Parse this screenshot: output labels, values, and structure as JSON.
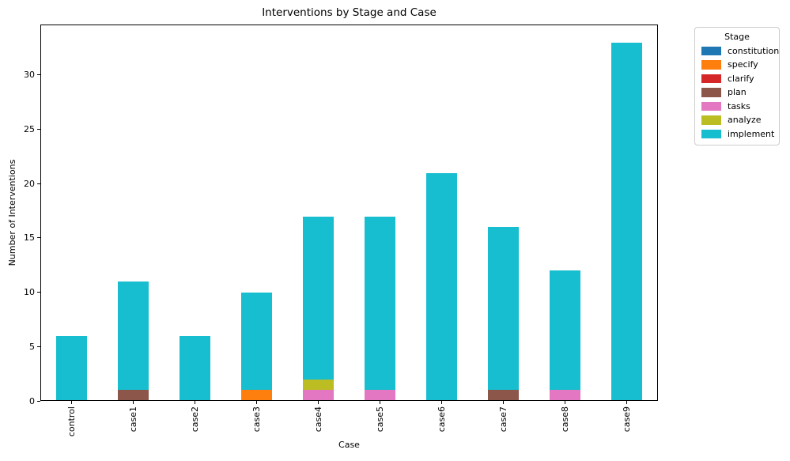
{
  "chart_data": {
    "type": "bar",
    "stacked": true,
    "title": "Interventions by Stage and Case",
    "xlabel": "Case",
    "ylabel": "Number of Interventions",
    "legend_title": "Stage",
    "legend_position": "outside upper right",
    "grid": false,
    "categories": [
      "control",
      "case1",
      "case2",
      "case3",
      "case4",
      "case5",
      "case6",
      "case7",
      "case8",
      "case9"
    ],
    "series": [
      {
        "name": "constitution",
        "color": "#1f77b4",
        "values": [
          0,
          0,
          0,
          0,
          0,
          0,
          0,
          0,
          0,
          0
        ]
      },
      {
        "name": "specify",
        "color": "#ff7f0e",
        "values": [
          0,
          0,
          0,
          1,
          0,
          0,
          0,
          0,
          0,
          0
        ]
      },
      {
        "name": "clarify",
        "color": "#d62728",
        "values": [
          0,
          0,
          0,
          0,
          0,
          0,
          0,
          0,
          0,
          0
        ]
      },
      {
        "name": "plan",
        "color": "#8c564b",
        "values": [
          0,
          1,
          0,
          0,
          0,
          0,
          0,
          1,
          0,
          0
        ]
      },
      {
        "name": "tasks",
        "color": "#e377c2",
        "values": [
          0,
          0,
          0,
          0,
          1,
          1,
          0,
          0,
          1,
          0
        ]
      },
      {
        "name": "analyze",
        "color": "#bcbd22",
        "values": [
          0,
          0,
          0,
          0,
          1,
          0,
          0,
          0,
          0,
          0
        ]
      },
      {
        "name": "implement",
        "color": "#17becf",
        "values": [
          6,
          10,
          6,
          9,
          15,
          16,
          21,
          15,
          11,
          33
        ]
      }
    ],
    "totals": [
      6,
      11,
      6,
      10,
      17,
      17,
      21,
      16,
      12,
      33
    ],
    "yticks": [
      0,
      5,
      10,
      15,
      20,
      25,
      30
    ],
    "ylim": [
      0,
      34.65
    ],
    "bar_width_fraction": 0.5
  },
  "colors": {
    "background": "#ffffff",
    "axis": "#000000",
    "legend_border": "#cccccc"
  }
}
